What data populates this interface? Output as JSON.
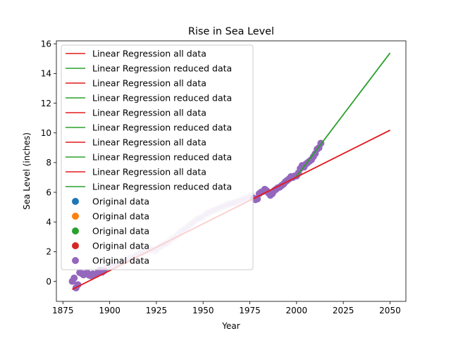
{
  "chart_data": {
    "type": "scatter",
    "title": "Rise in Sea Level",
    "xlabel": "Year",
    "ylabel": "Sea Level (inches)",
    "xlim": [
      1871.5,
      2058.5
    ],
    "ylim": [
      -1.35,
      16.2
    ],
    "xticks": [
      1875,
      1900,
      1925,
      1950,
      1975,
      2000,
      2025,
      2050
    ],
    "yticks": [
      0,
      2,
      4,
      6,
      8,
      10,
      12,
      14,
      16
    ],
    "grid": false,
    "legend_position": "upper-left",
    "colors": {
      "all_fit": "#e41a1c",
      "reduced_fit": "#2ca02c",
      "scatter": [
        "#1f77b4",
        "#ff7f0e",
        "#2ca02c",
        "#d62728",
        "#9467bd"
      ]
    },
    "series": [
      {
        "name": "Original data",
        "kind": "scatter",
        "x": [
          1880,
          1881,
          1882,
          1883,
          1884,
          1885,
          1886,
          1887,
          1888,
          1889,
          1890,
          1891,
          1892,
          1893,
          1894,
          1895,
          1896,
          1897,
          1898,
          1899,
          1900,
          1901,
          1902,
          1903,
          1904,
          1905,
          1906,
          1907,
          1908,
          1909,
          1910,
          1911,
          1912,
          1913,
          1914,
          1915,
          1916,
          1917,
          1918,
          1919,
          1920,
          1921,
          1922,
          1923,
          1924,
          1925,
          1926,
          1927,
          1928,
          1929,
          1930,
          1931,
          1932,
          1933,
          1934,
          1935,
          1936,
          1937,
          1938,
          1939,
          1940,
          1941,
          1942,
          1943,
          1944,
          1945,
          1946,
          1947,
          1948,
          1949,
          1950,
          1951,
          1952,
          1953,
          1954,
          1955,
          1956,
          1957,
          1958,
          1959,
          1960,
          1961,
          1962,
          1963,
          1964,
          1965,
          1966,
          1967,
          1968,
          1969,
          1970,
          1971,
          1972,
          1973,
          1974,
          1975,
          1976,
          1977,
          1978,
          1979,
          1980,
          1981,
          1982,
          1983,
          1984,
          1985,
          1986,
          1987,
          1988,
          1989,
          1990,
          1991,
          1992,
          1993,
          1994,
          1995,
          1996,
          1997,
          1998,
          1999,
          2000,
          2001,
          2002,
          2003,
          2004,
          2005,
          2006,
          2007,
          2008,
          2009,
          2010,
          2011,
          2012,
          2013
        ],
        "y": [
          0.0,
          0.22,
          -0.44,
          -0.23,
          0.59,
          0.53,
          0.44,
          0.51,
          0.58,
          0.42,
          0.38,
          0.5,
          0.45,
          0.48,
          0.67,
          0.76,
          0.62,
          0.72,
          0.88,
          0.92,
          1.1,
          1.0,
          1.02,
          1.05,
          1.12,
          1.2,
          1.28,
          1.32,
          1.41,
          1.4,
          1.5,
          1.62,
          1.58,
          1.7,
          1.72,
          1.85,
          1.9,
          1.95,
          1.88,
          2.02,
          2.05,
          2.1,
          2.2,
          2.15,
          2.0,
          2.1,
          2.25,
          2.35,
          2.4,
          2.5,
          2.55,
          2.6,
          2.72,
          2.8,
          3.0,
          2.9,
          3.1,
          3.2,
          3.35,
          3.4,
          3.5,
          3.6,
          3.7,
          3.8,
          3.9,
          4.0,
          4.1,
          4.2,
          4.3,
          4.25,
          4.35,
          4.5,
          4.6,
          4.55,
          4.75,
          4.7,
          4.8,
          4.85,
          4.9,
          4.95,
          5.0,
          5.05,
          5.1,
          5.2,
          5.15,
          5.3,
          5.25,
          5.3,
          5.35,
          5.4,
          5.5,
          5.45,
          5.6,
          5.55,
          5.65,
          5.7,
          5.8,
          5.6,
          5.5,
          5.55,
          5.9,
          6.0,
          6.05,
          6.2,
          6.1,
          5.95,
          5.8,
          5.9,
          6.1,
          6.2,
          6.3,
          6.35,
          6.45,
          6.55,
          6.7,
          6.8,
          6.9,
          7.05,
          7.0,
          7.1,
          7.1,
          7.3,
          7.6,
          7.8,
          7.7,
          7.9,
          8.0,
          8.1,
          8.2,
          8.4,
          8.6,
          8.9,
          9.0,
          9.3
        ]
      },
      {
        "name": "Linear Regression all data",
        "kind": "line",
        "x": [
          1880,
          2050
        ],
        "y": [
          -0.54,
          10.18
        ]
      },
      {
        "name": "Linear Regression reduced data",
        "kind": "line",
        "x": [
          2000,
          2050
        ],
        "y": [
          7.08,
          15.38
        ]
      }
    ],
    "legend_entries": [
      {
        "label": "Linear Regression all data",
        "kind": "line",
        "color": "#e41a1c"
      },
      {
        "label": "Linear Regression reduced data",
        "kind": "line",
        "color": "#2ca02c"
      },
      {
        "label": "Linear Regression all data",
        "kind": "line",
        "color": "#e41a1c"
      },
      {
        "label": "Linear Regression reduced data",
        "kind": "line",
        "color": "#2ca02c"
      },
      {
        "label": "Linear Regression all data",
        "kind": "line",
        "color": "#e41a1c"
      },
      {
        "label": "Linear Regression reduced data",
        "kind": "line",
        "color": "#2ca02c"
      },
      {
        "label": "Linear Regression all data",
        "kind": "line",
        "color": "#e41a1c"
      },
      {
        "label": "Linear Regression reduced data",
        "kind": "line",
        "color": "#2ca02c"
      },
      {
        "label": "Linear Regression all data",
        "kind": "line",
        "color": "#e41a1c"
      },
      {
        "label": "Linear Regression reduced data",
        "kind": "line",
        "color": "#2ca02c"
      },
      {
        "label": "Original data",
        "kind": "marker",
        "color": "#1f77b4"
      },
      {
        "label": "Original data",
        "kind": "marker",
        "color": "#ff7f0e"
      },
      {
        "label": "Original data",
        "kind": "marker",
        "color": "#2ca02c"
      },
      {
        "label": "Original data",
        "kind": "marker",
        "color": "#d62728"
      },
      {
        "label": "Original data",
        "kind": "marker",
        "color": "#9467bd"
      }
    ]
  }
}
